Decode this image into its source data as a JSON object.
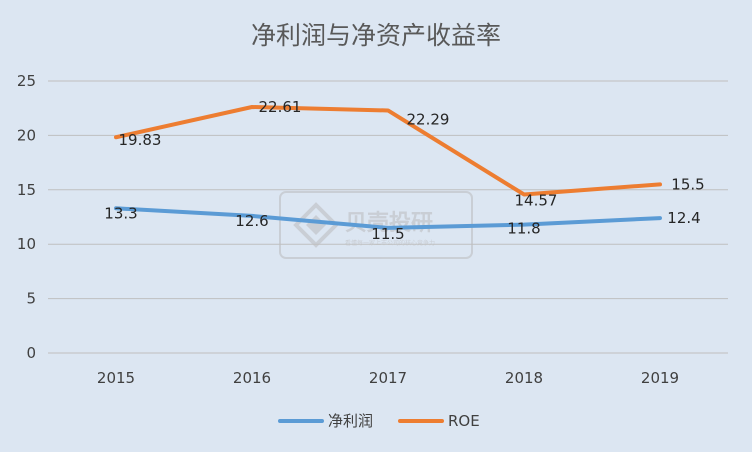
{
  "chart_data": {
    "type": "line",
    "title": "净利润与净资产收益率",
    "categories": [
      "2015",
      "2016",
      "2017",
      "2018",
      "2019"
    ],
    "series": [
      {
        "name": "净利润",
        "color": "#5b9bd5",
        "values": [
          13.3,
          12.6,
          11.5,
          11.8,
          12.4
        ]
      },
      {
        "name": "ROE",
        "color": "#ed7d31",
        "values": [
          19.83,
          22.61,
          22.29,
          14.57,
          15.5
        ]
      }
    ],
    "ylim": [
      0,
      25
    ],
    "yticks": [
      0,
      5,
      10,
      15,
      20,
      25
    ],
    "grid": true,
    "legend": "bottom"
  },
  "watermark": {
    "text": "贝壳投研",
    "subtext": "看懂每一家上市公司的核心竞争力",
    "icon": "watermark-logo-icon"
  }
}
